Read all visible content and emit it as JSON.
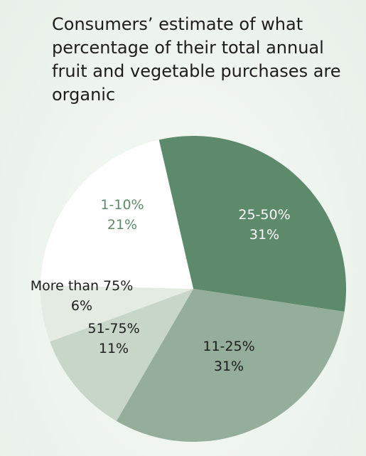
{
  "chart_data": {
    "type": "pie",
    "title": "Consumers’ estimate of what percentage of their total annual fruit and vegetable purchases are organic",
    "slices": [
      {
        "label": "25-50%",
        "value_label": "31%",
        "value": 31,
        "color": "#5e8a6c",
        "text_color": "#ffffff"
      },
      {
        "label": "11-25%",
        "value_label": "31%",
        "value": 31,
        "color": "#94ae9b",
        "text_color": "#1d1d1d"
      },
      {
        "label": "51-75%",
        "value_label": "11%",
        "value": 11,
        "color": "#c8d6ca",
        "text_color": "#1d1d1d"
      },
      {
        "label": "More than 75%",
        "value_label": "6%",
        "value": 6,
        "color": "#e3ebe3",
        "text_color": "#1d1d1d"
      },
      {
        "label": "1-10%",
        "value_label": "21%",
        "value": 21,
        "color": "#ffffff",
        "text_color": "#5e8a6c"
      }
    ]
  }
}
